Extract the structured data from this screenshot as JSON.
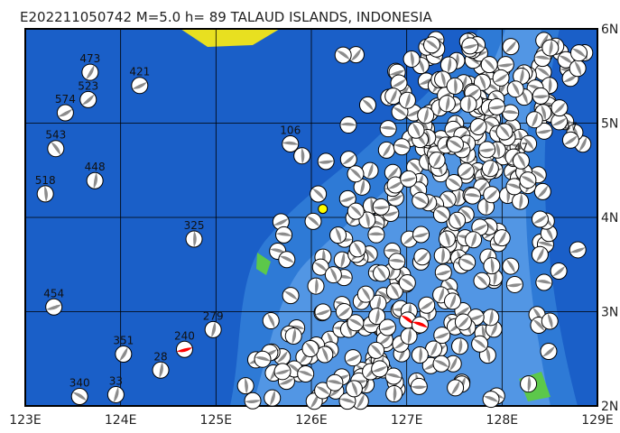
{
  "title": "E202211050742 M=5.0 h= 89 TALAUD ISLANDS, INDONESIA",
  "chart_data": {
    "type": "map",
    "xlim": [
      123,
      129
    ],
    "ylim": [
      2,
      6
    ],
    "x_ticks": [
      "123E",
      "124E",
      "125E",
      "126E",
      "127E",
      "128E",
      "129E"
    ],
    "y_ticks": [
      "2N",
      "3N",
      "4N",
      "5N",
      "6N"
    ],
    "grid": true,
    "colors": {
      "ocean": "#1a5fc8",
      "shelf": "#3c8ce0",
      "land": "#5cc84a",
      "highlight": "#ff0000",
      "beach_dark": "#8c8c8c"
    },
    "events": [
      [
        123.3,
        3.05,
        "454",
        "gray"
      ],
      [
        124.03,
        2.55,
        "351",
        "gray"
      ],
      [
        123.57,
        2.1,
        "340",
        "gray"
      ],
      [
        123.95,
        2.12,
        "33",
        "gray"
      ],
      [
        124.67,
        2.6,
        "240",
        "red"
      ],
      [
        124.42,
        2.38,
        "28",
        "gray"
      ],
      [
        124.97,
        2.81,
        "279",
        "gray"
      ],
      [
        123.42,
        5.11,
        "574",
        "gray"
      ],
      [
        123.32,
        4.73,
        "543",
        "gray"
      ],
      [
        123.73,
        4.39,
        "448",
        "gray"
      ],
      [
        123.21,
        4.25,
        "518",
        "gray"
      ],
      [
        123.68,
        5.54,
        "473",
        "gray"
      ],
      [
        123.66,
        5.25,
        "523",
        "gray"
      ],
      [
        124.2,
        5.4,
        "421",
        "gray"
      ],
      [
        128.72,
        4.82,
        "47",
        "gray"
      ],
      [
        128.2,
        4.6,
        "47",
        "gray"
      ],
      [
        125.78,
        4.78,
        "106",
        "gray"
      ],
      [
        124.77,
        3.77,
        "325",
        "gray"
      ],
      [
        127.01,
        2.91,
        "",
        "red"
      ],
      [
        127.14,
        2.86,
        "",
        "red"
      ]
    ],
    "marker": {
      "lon": 126.12,
      "lat": 4.09,
      "color": "#ffff00"
    }
  }
}
